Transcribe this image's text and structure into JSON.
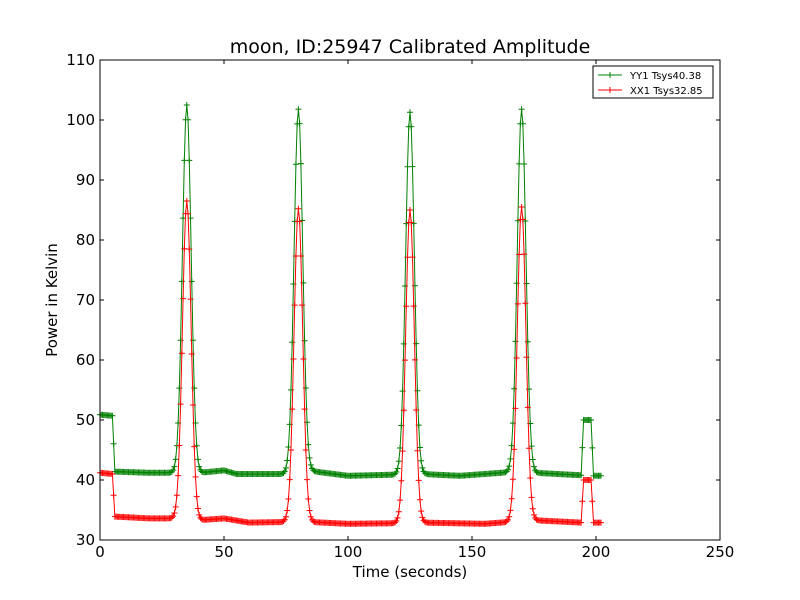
{
  "chart_data": {
    "type": "line",
    "title": "moon, ID:25947 Calibrated Amplitude",
    "xlabel": "Time (seconds)",
    "ylabel": "Power in Kelvin",
    "xlim": [
      0,
      250
    ],
    "ylim": [
      30,
      110
    ],
    "xticks": [
      "0",
      "50",
      "100",
      "150",
      "200",
      "250"
    ],
    "yticks": [
      "30",
      "40",
      "50",
      "60",
      "70",
      "80",
      "90",
      "100",
      "110"
    ],
    "grid": false,
    "legend_position": "top-right",
    "marker": "+",
    "peak_centers": [
      35,
      80,
      125,
      170
    ],
    "series": [
      {
        "name": "YY1 Tsys40.38",
        "color": "#008000",
        "baseline": [
          {
            "x": 0,
            "y": 50.9
          },
          {
            "x": 5,
            "y": 50.7
          },
          {
            "x": 6,
            "y": 41.4
          },
          {
            "x": 20,
            "y": 41.2
          },
          {
            "x": 30,
            "y": 41.2
          },
          {
            "x": 40,
            "y": 41.2
          },
          {
            "x": 50,
            "y": 41.6
          },
          {
            "x": 55,
            "y": 41.0
          },
          {
            "x": 75,
            "y": 41.0
          },
          {
            "x": 85,
            "y": 41.5
          },
          {
            "x": 100,
            "y": 40.7
          },
          {
            "x": 120,
            "y": 40.9
          },
          {
            "x": 130,
            "y": 41.0
          },
          {
            "x": 145,
            "y": 40.7
          },
          {
            "x": 165,
            "y": 41.3
          },
          {
            "x": 175,
            "y": 41.2
          },
          {
            "x": 194,
            "y": 40.8
          },
          {
            "x": 195,
            "y": 50.0
          },
          {
            "x": 198,
            "y": 50.0
          },
          {
            "x": 199,
            "y": 40.7
          },
          {
            "x": 202,
            "y": 40.7
          }
        ],
        "peaks": [
          102.5,
          101.8,
          101.3,
          101.8
        ]
      },
      {
        "name": "XX1 Tsys32.85",
        "color": "#ff0000",
        "baseline": [
          {
            "x": 0,
            "y": 41.2
          },
          {
            "x": 5,
            "y": 41.0
          },
          {
            "x": 6,
            "y": 33.9
          },
          {
            "x": 20,
            "y": 33.6
          },
          {
            "x": 30,
            "y": 33.6
          },
          {
            "x": 40,
            "y": 33.3
          },
          {
            "x": 50,
            "y": 33.6
          },
          {
            "x": 60,
            "y": 32.9
          },
          {
            "x": 75,
            "y": 33.0
          },
          {
            "x": 85,
            "y": 33.0
          },
          {
            "x": 100,
            "y": 32.7
          },
          {
            "x": 120,
            "y": 32.8
          },
          {
            "x": 130,
            "y": 32.9
          },
          {
            "x": 155,
            "y": 32.7
          },
          {
            "x": 165,
            "y": 33.0
          },
          {
            "x": 175,
            "y": 33.3
          },
          {
            "x": 194,
            "y": 32.9
          },
          {
            "x": 195,
            "y": 40.0
          },
          {
            "x": 198,
            "y": 40.0
          },
          {
            "x": 199,
            "y": 32.9
          },
          {
            "x": 202,
            "y": 32.9
          }
        ],
        "peaks": [
          86.5,
          85.2,
          85.0,
          85.5
        ]
      }
    ]
  }
}
